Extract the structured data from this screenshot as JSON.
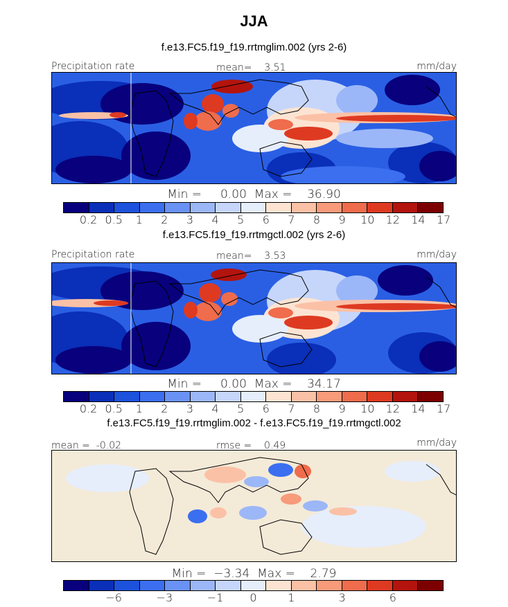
{
  "figure": {
    "title": "JJA"
  },
  "panels": [
    {
      "case": "f.e13.FC5.f19_f19.rrtmglim.002 (yrs 2-6)",
      "left_label": "Precipitation rate",
      "center_label": "mean=    3.51",
      "right_label": "mm/day",
      "minmax": "Min =     0.00  Max =    36.90"
    },
    {
      "case": "f.e13.FC5.f19_f19.rrtmgctl.002 (yrs 2-6)",
      "left_label": "Precipitation rate",
      "center_label": "mean=    3.53",
      "right_label": "mm/day",
      "minmax": "Min =     0.00  Max =    34.17"
    },
    {
      "case": "f.e13.FC5.f19_f19.rrtmglim.002 - f.e13.FC5.f19_f19.rrtmgctl.002",
      "left_label": "mean =  -0.02",
      "center_label": "rmse =    0.49",
      "right_label": "mm/day",
      "minmax": "Min =  −3.34  Max =    2.79"
    }
  ],
  "chart_data": [
    {
      "type": "heatmap",
      "title": "JJA",
      "subtitle": "f.e13.FC5.f19_f19.rrtmglim.002 (yrs 2-6)",
      "variable": "Precipitation rate",
      "units": "mm/day",
      "mean": 3.51,
      "min": 0.0,
      "max": 36.9,
      "colorbar_ticks": [
        "0.2",
        "0.5",
        "1",
        "2",
        "3",
        "4",
        "5",
        "6",
        "7",
        "8",
        "9",
        "10",
        "12",
        "14",
        "17"
      ],
      "colorbar_colors": [
        "#08007d",
        "#0a2fb8",
        "#1c52dc",
        "#3b6ff0",
        "#6a92f5",
        "#9cb7f8",
        "#c6d6fb",
        "#e6eefc",
        "#fde4d2",
        "#fbc1a6",
        "#f79b7b",
        "#ef6c4c",
        "#de3a22",
        "#b3140d",
        "#7d0000"
      ]
    },
    {
      "type": "heatmap",
      "subtitle": "f.e13.FC5.f19_f19.rrtmgctl.002 (yrs 2-6)",
      "variable": "Precipitation rate",
      "units": "mm/day",
      "mean": 3.53,
      "min": 0.0,
      "max": 34.17,
      "colorbar_ticks": [
        "0.2",
        "0.5",
        "1",
        "2",
        "3",
        "4",
        "5",
        "6",
        "7",
        "8",
        "9",
        "10",
        "12",
        "14",
        "17"
      ],
      "colorbar_colors": [
        "#08007d",
        "#0a2fb8",
        "#1c52dc",
        "#3b6ff0",
        "#6a92f5",
        "#9cb7f8",
        "#c6d6fb",
        "#e6eefc",
        "#fde4d2",
        "#fbc1a6",
        "#f79b7b",
        "#ef6c4c",
        "#de3a22",
        "#b3140d",
        "#7d0000"
      ]
    },
    {
      "type": "heatmap",
      "subtitle": "f.e13.FC5.f19_f19.rrtmglim.002 - f.e13.FC5.f19_f19.rrtmgctl.002",
      "units": "mm/day",
      "mean": -0.02,
      "rmse": 0.49,
      "min": -3.34,
      "max": 2.79,
      "colorbar_ticks": [
        "−6",
        "−3",
        "−1",
        "0",
        "1",
        "3",
        "6"
      ],
      "colorbar_colors": [
        "#08007d",
        "#0a2fb8",
        "#1c52dc",
        "#3b6ff0",
        "#6a92f5",
        "#9cb7f8",
        "#c6d6fb",
        "#e6eefc",
        "#fde4d2",
        "#fbc1a6",
        "#f79b7b",
        "#ef6c4c",
        "#de3a22",
        "#b3140d",
        "#7d0000"
      ]
    }
  ]
}
